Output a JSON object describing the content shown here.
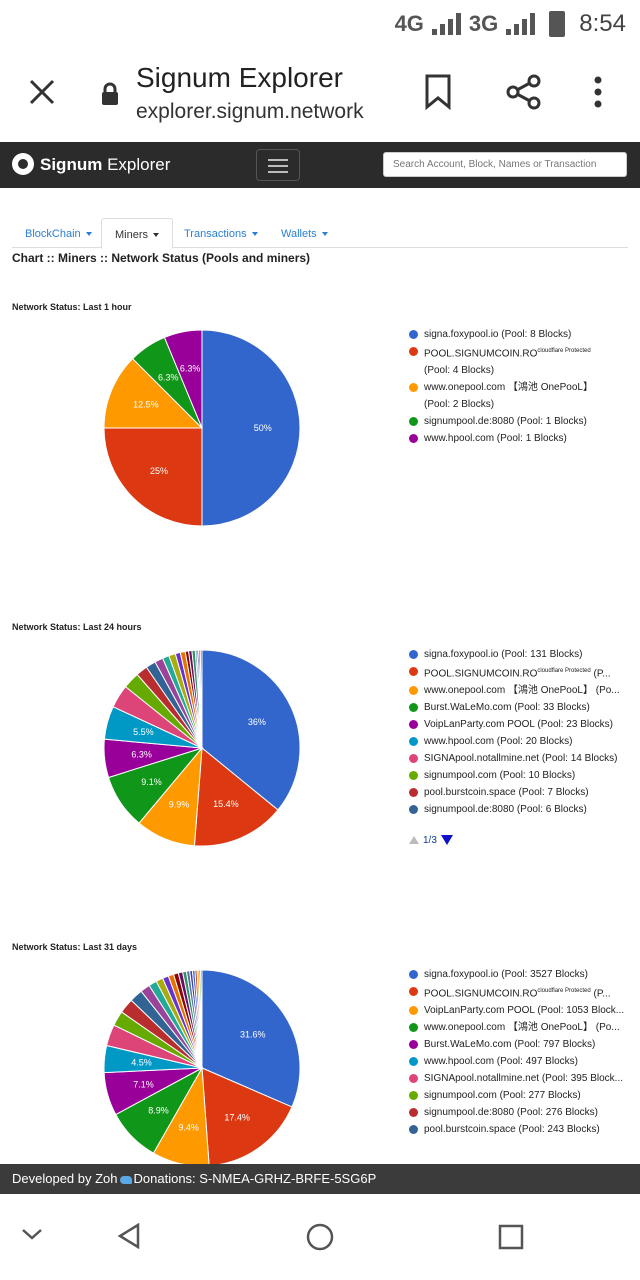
{
  "status_bar": {
    "network1": "4G",
    "network2": "3G",
    "time": "8:54"
  },
  "browser": {
    "page_title": "Signum Explorer",
    "host": "explorer.signum.network"
  },
  "site": {
    "brand_bold": "Signum",
    "brand_rest": "Explorer",
    "search_placeholder": "Search Account, Block, Names or Transaction"
  },
  "tabs": [
    {
      "label": "BlockChain"
    },
    {
      "label": "Miners"
    },
    {
      "label": "Transactions"
    },
    {
      "label": "Wallets"
    }
  ],
  "page_title": "Chart :: Miners :: Network Status (Pools and miners)",
  "charts_text": {
    "c1": {
      "title": "Network Status: Last 1 hour",
      "legend": [
        "signa.foxypool.io (Pool: 8 Blocks)",
        "POOL.SIGNUMCOIN.RO",
        "(Pool: 4 Blocks)",
        "www.onepool.com 【鴻池 OnePooL】",
        "(Pool: 2 Blocks)",
        "signumpool.de:8080 (Pool: 1 Blocks)",
        "www.hpool.com (Pool: 1 Blocks)"
      ],
      "sup": "cloudflare Protected",
      "slice_labels": [
        "50%",
        "25%",
        "12.5%",
        "6.3%",
        "6.3%"
      ]
    },
    "c2": {
      "title": "Network Status: Last 24 hours",
      "legend": [
        "signa.foxypool.io (Pool: 131 Blocks)",
        "POOL.SIGNUMCOIN.RO",
        "www.onepool.com 【鴻池 OnePooL】 (Po...",
        "Burst.WaLeMo.com (Pool: 33 Blocks)",
        "VoipLanParty.com POOL (Pool: 23 Blocks)",
        "www.hpool.com (Pool: 20 Blocks)",
        "SIGNApool.notallmine.net (Pool: 14 Blocks)",
        "signumpool.com (Pool: 10 Blocks)",
        "pool.burstcoin.space (Pool: 7 Blocks)",
        "signumpool.de:8080 (Pool: 6 Blocks)"
      ],
      "sup": "cloudflare Protected",
      "sup_tail": "(P...",
      "pager": "1/3",
      "slice_labels": [
        "36%",
        "15.4%",
        "9.9%",
        "9.1%",
        "6.3%",
        "5.5%"
      ]
    },
    "c3": {
      "title": "Network Status: Last 31 days",
      "legend": [
        "signa.foxypool.io (Pool: 3527 Blocks)",
        "POOL.SIGNUMCOIN.RO",
        "VoipLanParty.com POOL (Pool: 1053 Block...",
        "www.onepool.com 【鴻池 OnePooL】 (Po...",
        "Burst.WaLeMo.com (Pool: 797 Blocks)",
        "www.hpool.com (Pool: 497 Blocks)",
        "SIGNApool.notallmine.net (Pool: 395 Block...",
        "signumpool.com (Pool: 277 Blocks)",
        "signumpool.de:8080 (Pool: 276 Blocks)",
        "pool.burstcoin.space (Pool: 243 Blocks)"
      ],
      "sup": "cloudflare Protected",
      "sup_tail": "(P...",
      "pager": "1/3",
      "slice_labels": [
        "31.6%",
        "17.4%",
        "9.4%",
        "8.9%",
        "7.1%",
        "4.5%"
      ]
    }
  },
  "footer": {
    "left": "Developed by Zoh",
    "right": "Donations: S-NMEA-GRHZ-BRFE-5SG6P"
  },
  "colors": {
    "palette": [
      "#3366cc",
      "#dc3912",
      "#ff9900",
      "#109618",
      "#990099",
      "#0099c6",
      "#dd4477",
      "#66aa00",
      "#b82e2e",
      "#316395",
      "#994499",
      "#22aa99",
      "#aaaa11",
      "#6633cc",
      "#e67300",
      "#8b0707",
      "#651067",
      "#329262",
      "#5574a6",
      "#3b3eac"
    ]
  },
  "chart_data": [
    {
      "type": "pie",
      "title": "Network Status: Last 1 hour",
      "labels": [
        "signa.foxypool.io",
        "POOL.SIGNUMCOIN.RO",
        "www.onepool.com 【鴻池 OnePooL】",
        "signumpool.de:8080",
        "www.hpool.com"
      ],
      "values": [
        8,
        4,
        2,
        1,
        1
      ],
      "percent_labels": [
        "50%",
        "25%",
        "12.5%",
        "6.3%",
        "6.3%"
      ],
      "legend": "right"
    },
    {
      "type": "pie",
      "title": "Network Status: Last 24 hours",
      "labels": [
        "signa.foxypool.io",
        "POOL.SIGNUMCOIN.RO",
        "www.onepool.com 【鴻池 OnePooL】",
        "Burst.WaLeMo.com",
        "VoipLanParty.com POOL",
        "www.hpool.com",
        "SIGNApool.notallmine.net",
        "signumpool.com",
        "pool.burstcoin.space",
        "signumpool.de:8080"
      ],
      "values": [
        131,
        56,
        36,
        33,
        23,
        20,
        14,
        10,
        7,
        6
      ],
      "other_slices": [
        5,
        4,
        4,
        3,
        3,
        2,
        2,
        2,
        1,
        1,
        1,
        1
      ],
      "percent_labels": [
        "36%",
        "15.4%",
        "9.9%",
        "9.1%",
        "6.3%",
        "5.5%"
      ],
      "legend": "right"
    },
    {
      "type": "pie",
      "title": "Network Status: Last 31 days",
      "labels": [
        "signa.foxypool.io",
        "POOL.SIGNUMCOIN.RO",
        "VoipLanParty.com POOL",
        "www.onepool.com 【鴻池 OnePooL】",
        "Burst.WaLeMo.com",
        "www.hpool.com",
        "SIGNApool.notallmine.net",
        "signumpool.com",
        "signumpool.de:8080",
        "pool.burstcoin.space"
      ],
      "values": [
        3527,
        1940,
        1053,
        994,
        797,
        497,
        395,
        277,
        276,
        243
      ],
      "other_slices": [
        180,
        150,
        130,
        110,
        100,
        90,
        80,
        70,
        60,
        50,
        45,
        40,
        35,
        30,
        25
      ],
      "percent_labels": [
        "31.6%",
        "17.4%",
        "9.4%",
        "8.9%",
        "7.1%",
        "4.5%"
      ],
      "legend": "right"
    }
  ]
}
